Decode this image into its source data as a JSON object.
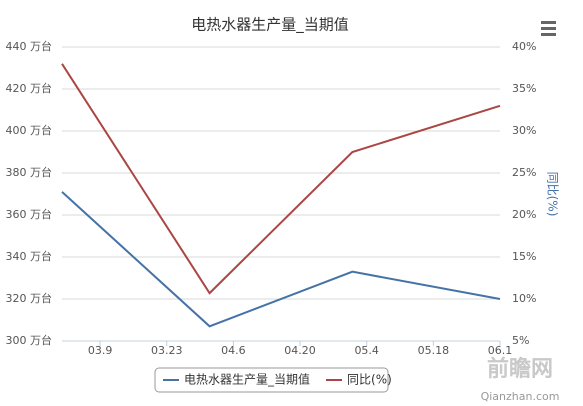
{
  "chart_data": {
    "type": "line",
    "title": "电热水器生产量_当期值",
    "y2_label": "同比(%)",
    "x": [
      "03.1",
      "04.1",
      "05.1",
      "06.1"
    ],
    "xlim": [
      "03.1",
      "06.1"
    ],
    "xticks": [
      "03.9",
      "03.23",
      "04.6",
      "04.20",
      "05.4",
      "05.18",
      "06.1"
    ],
    "series": [
      {
        "name": "电热水器生产量_当期值",
        "color": "#4572a7",
        "values": [
          371,
          307,
          333,
          320
        ]
      },
      {
        "name": "同比(%)",
        "color": "#aa4643",
        "axis": "y2",
        "values": [
          38,
          10.7,
          27.5,
          33
        ]
      }
    ],
    "ylim": [
      300,
      440
    ],
    "yticks": [
      {
        "value": 300,
        "label": "300 万台"
      },
      {
        "value": 320,
        "label": "320 万台"
      },
      {
        "value": 340,
        "label": "340 万台"
      },
      {
        "value": 360,
        "label": "360 万台"
      },
      {
        "value": 380,
        "label": "380 万台"
      },
      {
        "value": 400,
        "label": "400 万台"
      },
      {
        "value": 420,
        "label": "420 万台"
      },
      {
        "value": 440,
        "label": "440 万台"
      }
    ],
    "y2lim": [
      5,
      40
    ],
    "y2ticks": [
      {
        "value": 5,
        "label": "5%"
      },
      {
        "value": 10,
        "label": "10%"
      },
      {
        "value": 15,
        "label": "15%"
      },
      {
        "value": 20,
        "label": "20%"
      },
      {
        "value": 25,
        "label": "25%"
      },
      {
        "value": 30,
        "label": "30%"
      },
      {
        "value": 35,
        "label": "35%"
      },
      {
        "value": 40,
        "label": "40%"
      }
    ],
    "grid": true,
    "legend": "bottom",
    "watermark": "前瞻网",
    "watermark_url": "Qianzhan.com"
  }
}
